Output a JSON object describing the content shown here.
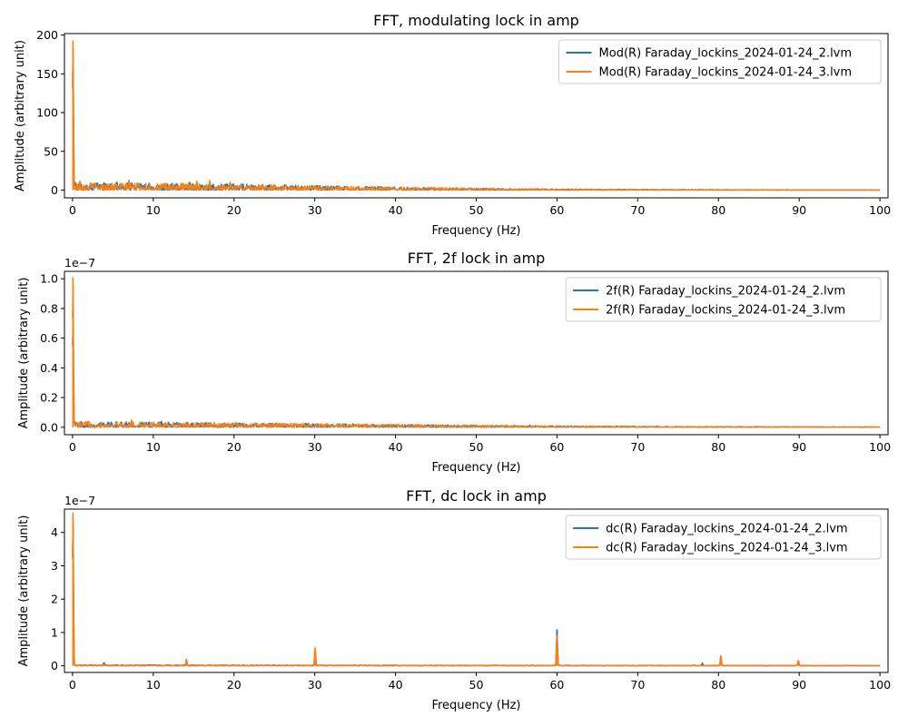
{
  "colors": {
    "series_1": "#1f77b4",
    "series_2": "#ff7f0e",
    "axes": "#000000",
    "legend_border": "#cccccc"
  },
  "chart_data": [
    {
      "type": "line",
      "title": "FFT, modulating lock in amp",
      "xlabel": "Frequency (Hz)",
      "ylabel": "Amplitude (arbitrary unit)",
      "xlim": [
        -1,
        101
      ],
      "ylim": [
        -10,
        202
      ],
      "xticks": [
        0,
        10,
        20,
        30,
        40,
        50,
        60,
        70,
        80,
        90,
        100
      ],
      "yticks": [
        0,
        50,
        100,
        150,
        200
      ],
      "ytick_labels": [
        "0",
        "50",
        "100",
        "150",
        "200"
      ],
      "offset_text": "",
      "grid": false,
      "legend_position": "top-right",
      "noise": {
        "envelope": [
          [
            0,
            10
          ],
          [
            10,
            9
          ],
          [
            20,
            8
          ],
          [
            30,
            6
          ],
          [
            40,
            4
          ],
          [
            50,
            2.5
          ],
          [
            60,
            1.5
          ],
          [
            70,
            1
          ],
          [
            80,
            0.6
          ],
          [
            90,
            0.4
          ],
          [
            100,
            0.2
          ]
        ]
      },
      "series": [
        {
          "name": "Mod(R) Faraday_lockins_2024-01-24_2.lvm",
          "peaks": [
            [
              0.05,
              178
            ],
            [
              5.5,
              10
            ],
            [
              14.5,
              10
            ]
          ]
        },
        {
          "name": "Mod(R) Faraday_lockins_2024-01-24_3.lvm",
          "peaks": [
            [
              0.05,
              193
            ],
            [
              0.9,
              12
            ],
            [
              7,
              13
            ],
            [
              15.4,
              12
            ],
            [
              17,
              12
            ],
            [
              19.5,
              10
            ]
          ]
        }
      ]
    },
    {
      "type": "line",
      "title": "FFT, 2f lock in amp",
      "xlabel": "Frequency (Hz)",
      "ylabel": "Amplitude (arbitrary unit)",
      "xlim": [
        -1,
        101
      ],
      "ylim": [
        -0.05,
        1.05
      ],
      "xticks": [
        0,
        10,
        20,
        30,
        40,
        50,
        60,
        70,
        80,
        90,
        100
      ],
      "yticks": [
        0,
        0.2,
        0.4,
        0.6,
        0.8,
        1.0
      ],
      "ytick_labels": [
        "0.0",
        "0.2",
        "0.4",
        "0.6",
        "0.8",
        "1.0"
      ],
      "offset_text": "1e−7",
      "grid": false,
      "legend_position": "top-right",
      "noise": {
        "envelope": [
          [
            0,
            0.04
          ],
          [
            10,
            0.035
          ],
          [
            20,
            0.03
          ],
          [
            30,
            0.025
          ],
          [
            40,
            0.02
          ],
          [
            50,
            0.015
          ],
          [
            60,
            0.01
          ],
          [
            70,
            0.007
          ],
          [
            80,
            0.005
          ],
          [
            90,
            0.004
          ],
          [
            100,
            0.003
          ]
        ]
      },
      "series": [
        {
          "name": "2f(R) Faraday_lockins_2024-01-24_2.lvm",
          "peaks": [
            [
              0.05,
              0.75
            ],
            [
              11,
              0.04
            ]
          ]
        },
        {
          "name": "2f(R) Faraday_lockins_2024-01-24_3.lvm",
          "peaks": [
            [
              0.05,
              1.01
            ],
            [
              7.3,
              0.05
            ],
            [
              2,
              0.04
            ]
          ]
        }
      ]
    },
    {
      "type": "line",
      "title": "FFT, dc lock in amp",
      "xlabel": "Frequency (Hz)",
      "ylabel": "Amplitude (arbitrary unit)",
      "xlim": [
        -1,
        101
      ],
      "ylim": [
        -0.2,
        4.7
      ],
      "xticks": [
        0,
        10,
        20,
        30,
        40,
        50,
        60,
        70,
        80,
        90,
        100
      ],
      "yticks": [
        0,
        1,
        2,
        3,
        4
      ],
      "ytick_labels": [
        "0",
        "1",
        "2",
        "3",
        "4"
      ],
      "offset_text": "1e−7",
      "grid": false,
      "legend_position": "top-right",
      "noise": {
        "envelope": [
          [
            0,
            0.03
          ],
          [
            50,
            0.02
          ],
          [
            100,
            0.01
          ]
        ]
      },
      "series": [
        {
          "name": "dc(R) Faraday_lockins_2024-01-24_2.lvm",
          "peaks": [
            [
              0.05,
              4.4
            ],
            [
              3.9,
              0.1
            ],
            [
              14.1,
              0.18
            ],
            [
              30.05,
              0.5
            ],
            [
              60,
              1.08
            ],
            [
              78,
              0.08
            ],
            [
              80.3,
              0.3
            ],
            [
              89.9,
              0.15
            ]
          ]
        },
        {
          "name": "dc(R) Faraday_lockins_2024-01-24_3.lvm",
          "peaks": [
            [
              0.05,
              4.6
            ],
            [
              14.1,
              0.2
            ],
            [
              30.05,
              0.55
            ],
            [
              60,
              0.9
            ],
            [
              80.3,
              0.3
            ],
            [
              89.9,
              0.17
            ]
          ]
        }
      ]
    }
  ]
}
